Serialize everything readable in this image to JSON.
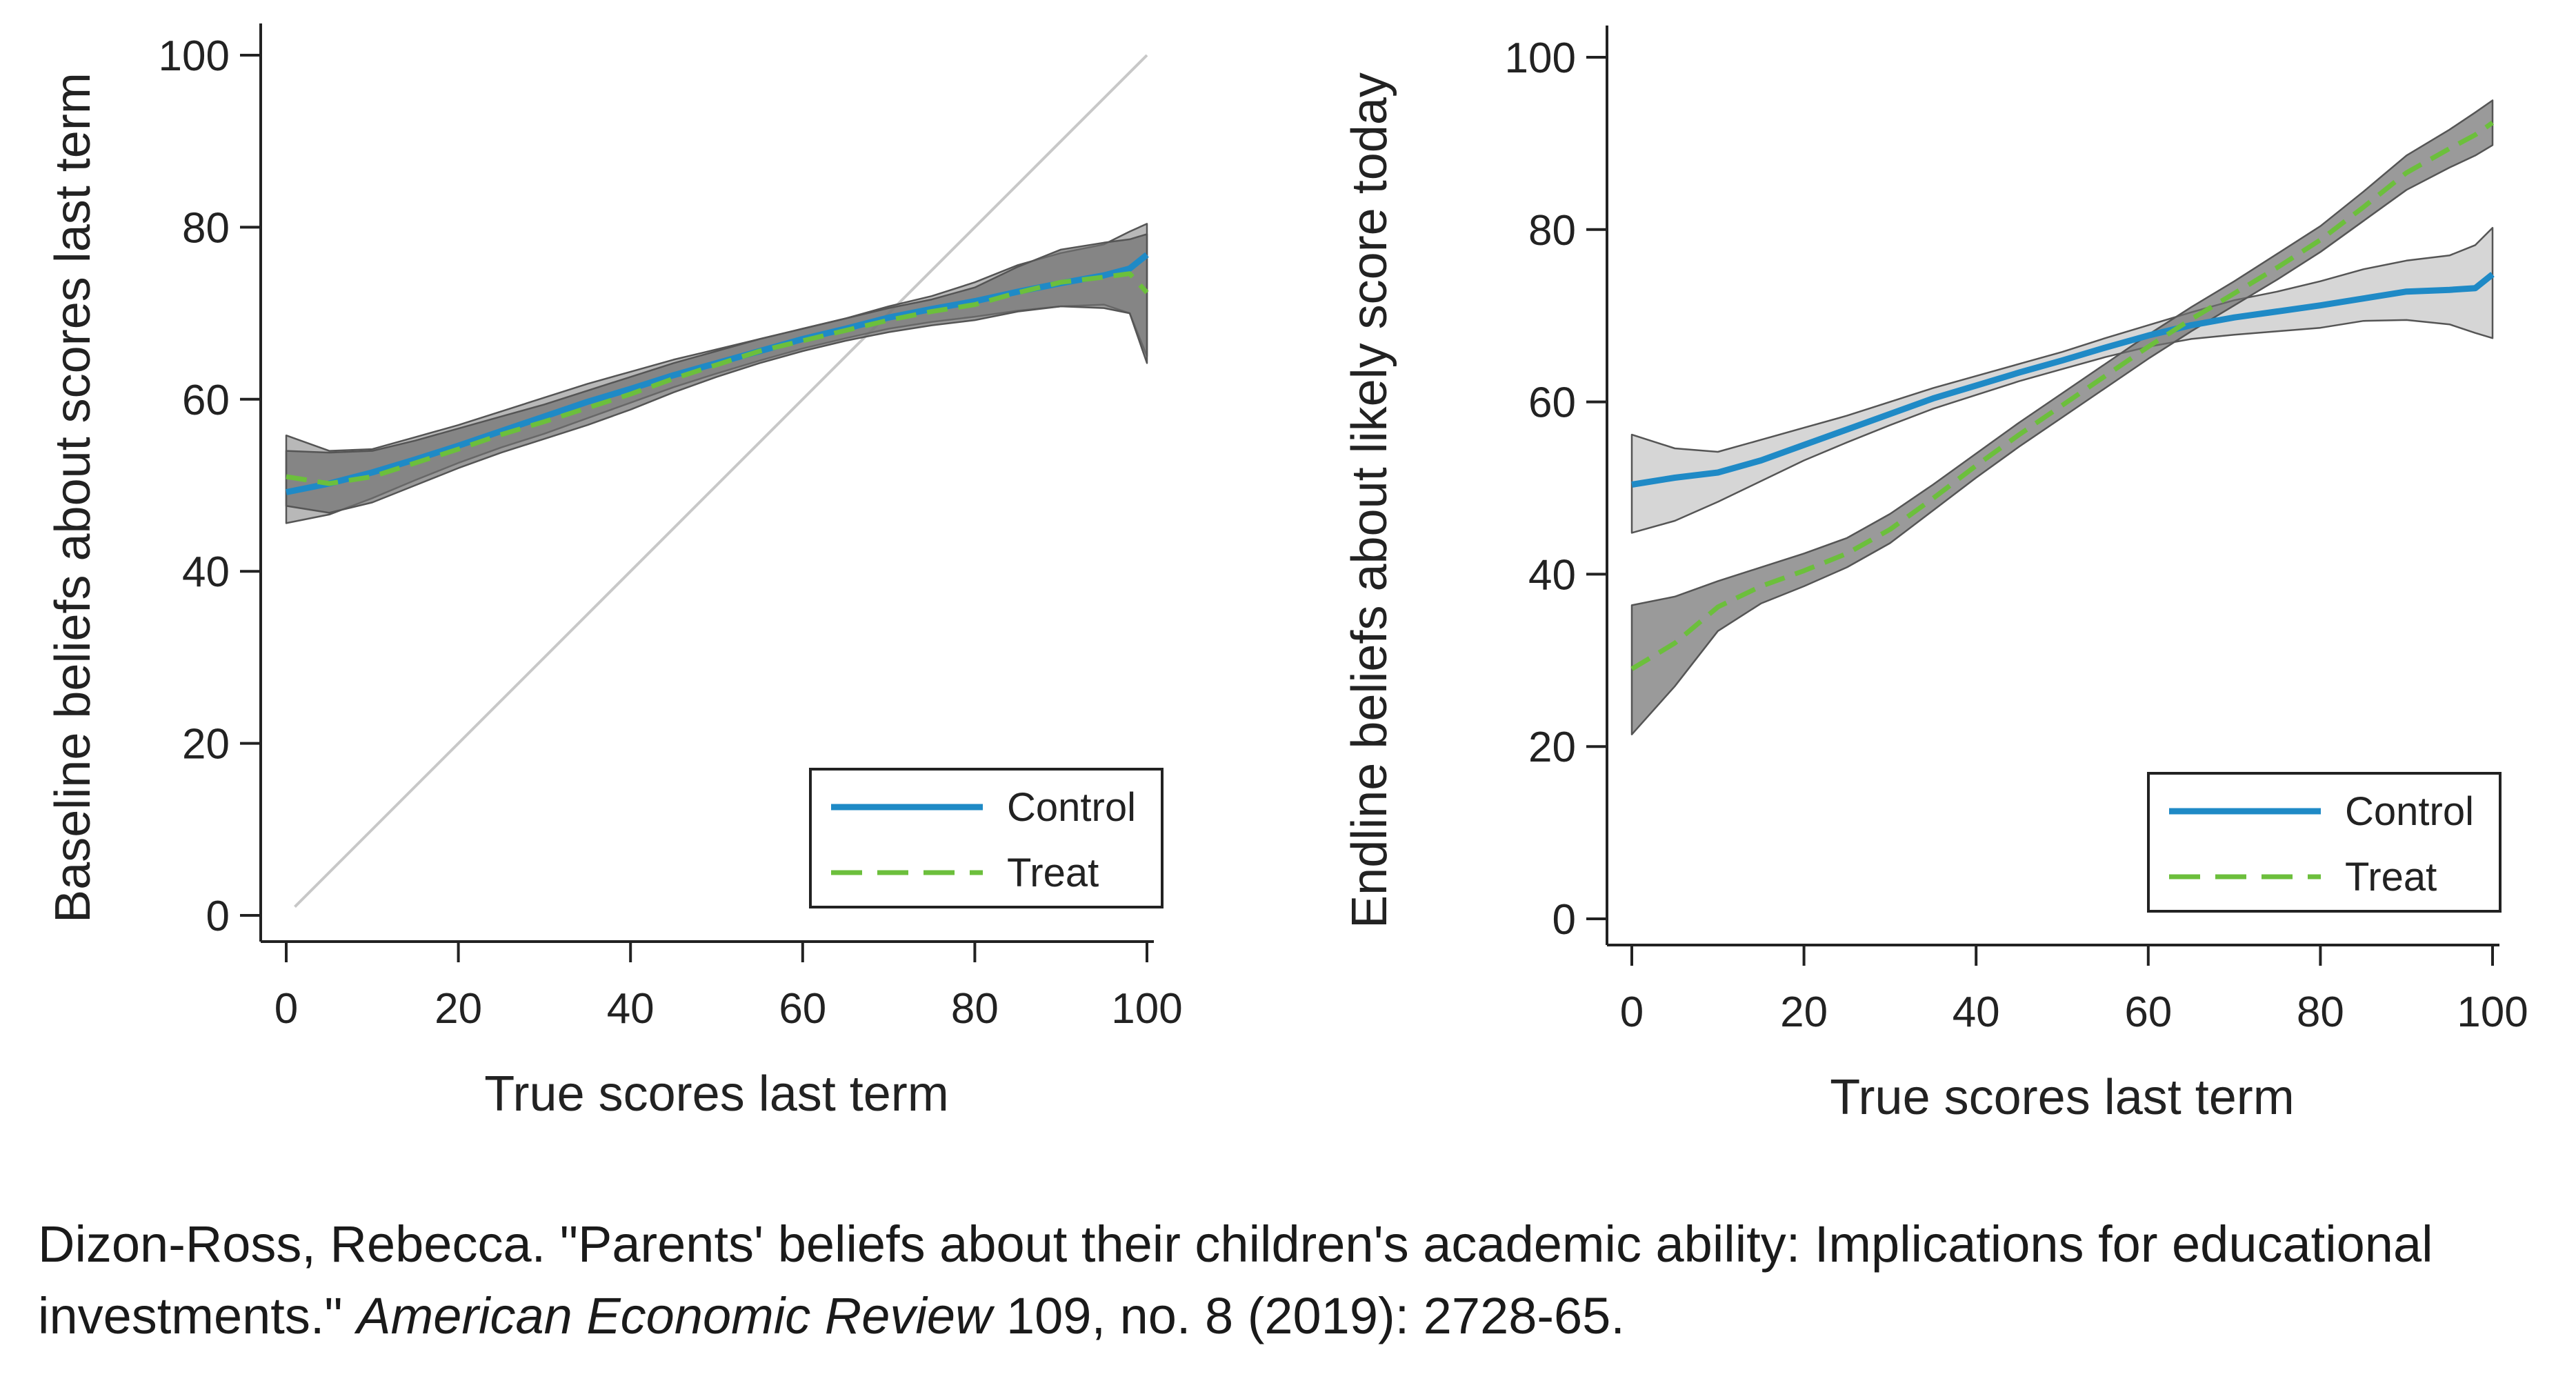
{
  "chart_data": [
    {
      "type": "line",
      "title": "",
      "xlabel": "True scores last term",
      "ylabel": "Baseline beliefs about scores last term",
      "xlim": [
        0,
        100
      ],
      "ylim": [
        0,
        100
      ],
      "xticks": [
        "0",
        "20",
        "40",
        "60",
        "80",
        "100"
      ],
      "yticks": [
        "0",
        "20",
        "40",
        "60",
        "80",
        "100"
      ],
      "grid": false,
      "legend_position": "bottom-right",
      "reference_line": {
        "from": [
          1,
          1
        ],
        "to": [
          100,
          100
        ],
        "label": ""
      },
      "series": [
        {
          "name": "Control",
          "style": "solid",
          "color": "#1f8ac6",
          "x": [
            0,
            5,
            10,
            15,
            20,
            25,
            30,
            35,
            40,
            45,
            50,
            55,
            60,
            65,
            70,
            75,
            80,
            85,
            90,
            95,
            98,
            100
          ],
          "y": [
            49.2,
            50.2,
            51.5,
            53.0,
            54.6,
            56.3,
            58.0,
            59.7,
            61.2,
            62.8,
            64.2,
            65.6,
            67.0,
            68.2,
            69.5,
            70.5,
            71.4,
            72.5,
            73.5,
            74.4,
            75.2,
            76.8
          ],
          "ci_lower": [
            45.6,
            46.6,
            48.5,
            50.6,
            52.6,
            54.4,
            56.0,
            57.8,
            59.6,
            61.4,
            63.0,
            64.5,
            65.9,
            67.1,
            68.2,
            69.0,
            69.6,
            70.3,
            70.8,
            71.0,
            70.0,
            65.0
          ],
          "ci_upper": [
            55.8,
            54.0,
            54.2,
            55.6,
            57.0,
            58.6,
            60.2,
            61.8,
            63.2,
            64.6,
            65.8,
            67.0,
            68.2,
            69.4,
            70.8,
            72.0,
            73.6,
            75.6,
            77.0,
            78.0,
            79.5,
            80.4
          ]
        },
        {
          "name": "Treat",
          "style": "dashed",
          "color": "#6cbf3c",
          "x": [
            0,
            5,
            10,
            15,
            20,
            25,
            30,
            35,
            40,
            45,
            50,
            55,
            60,
            65,
            70,
            75,
            80,
            85,
            90,
            95,
            98,
            100
          ],
          "y": [
            51.0,
            50.2,
            51.0,
            52.6,
            54.2,
            55.9,
            57.4,
            59.0,
            60.6,
            62.4,
            64.0,
            65.6,
            66.8,
            68.0,
            69.2,
            70.2,
            71.0,
            72.4,
            73.6,
            74.2,
            74.6,
            72.4
          ],
          "ci_lower": [
            47.6,
            46.8,
            48.0,
            50.0,
            52.0,
            53.8,
            55.4,
            57.0,
            58.8,
            60.8,
            62.6,
            64.2,
            65.6,
            66.8,
            67.8,
            68.6,
            69.2,
            70.2,
            70.8,
            70.6,
            70.0,
            64.2
          ],
          "ci_upper": [
            54.0,
            53.8,
            54.0,
            55.2,
            56.6,
            58.0,
            59.4,
            61.0,
            62.6,
            64.2,
            65.6,
            67.0,
            68.2,
            69.4,
            70.6,
            71.6,
            73.0,
            75.4,
            77.4,
            78.2,
            78.6,
            79.2
          ]
        }
      ]
    },
    {
      "type": "line",
      "title": "",
      "xlabel": "True scores last term",
      "ylabel": "Endline beliefs about likely score today",
      "xlim": [
        0,
        100
      ],
      "ylim": [
        0,
        100
      ],
      "xticks": [
        "0",
        "20",
        "40",
        "60",
        "80",
        "100"
      ],
      "yticks": [
        "0",
        "20",
        "40",
        "60",
        "80",
        "100"
      ],
      "grid": false,
      "legend_position": "bottom-right",
      "series": [
        {
          "name": "Control",
          "style": "solid",
          "color": "#1f8ac6",
          "x": [
            0,
            5,
            10,
            15,
            20,
            25,
            30,
            35,
            40,
            45,
            50,
            55,
            60,
            65,
            70,
            75,
            80,
            85,
            90,
            95,
            98,
            100
          ],
          "y": [
            50.4,
            51.2,
            51.8,
            53.2,
            55.0,
            56.8,
            58.6,
            60.4,
            61.9,
            63.4,
            64.8,
            66.3,
            67.7,
            68.9,
            69.8,
            70.5,
            71.2,
            72.0,
            72.8,
            73.0,
            73.2,
            74.8
          ],
          "ci_lower": [
            44.8,
            46.2,
            48.4,
            50.8,
            53.2,
            55.3,
            57.3,
            59.2,
            60.8,
            62.4,
            63.8,
            65.2,
            66.4,
            67.3,
            67.8,
            68.2,
            68.6,
            69.4,
            69.5,
            69.0,
            68.0,
            67.4
          ],
          "ci_upper": [
            56.2,
            54.6,
            54.2,
            55.6,
            57.0,
            58.4,
            60.0,
            61.6,
            63.0,
            64.4,
            65.8,
            67.4,
            68.9,
            70.4,
            71.8,
            72.8,
            74.0,
            75.4,
            76.4,
            77.0,
            78.2,
            80.2
          ]
        },
        {
          "name": "Treat",
          "style": "dashed",
          "color": "#6cbf3c",
          "x": [
            0,
            5,
            10,
            15,
            20,
            25,
            30,
            35,
            40,
            45,
            50,
            55,
            60,
            65,
            70,
            75,
            80,
            85,
            90,
            95,
            98,
            100
          ],
          "y": [
            29.0,
            32.0,
            36.2,
            38.6,
            40.4,
            42.4,
            45.2,
            48.8,
            52.6,
            56.2,
            59.6,
            63.0,
            66.4,
            69.6,
            72.6,
            75.6,
            78.8,
            82.6,
            86.6,
            89.4,
            91.0,
            92.4
          ],
          "ci_lower": [
            21.4,
            27.0,
            33.4,
            36.6,
            38.6,
            40.8,
            43.6,
            47.4,
            51.2,
            54.8,
            58.2,
            61.6,
            65.0,
            68.2,
            71.2,
            74.2,
            77.4,
            81.0,
            84.6,
            87.2,
            88.6,
            89.8
          ],
          "ci_upper": [
            36.4,
            37.4,
            39.2,
            40.8,
            42.4,
            44.2,
            47.0,
            50.4,
            54.0,
            57.6,
            61.0,
            64.4,
            67.8,
            71.0,
            74.0,
            77.2,
            80.4,
            84.4,
            88.6,
            91.6,
            93.6,
            95.0
          ]
        }
      ]
    }
  ],
  "caption": {
    "text_pre": "Dizon-Ross, Rebecca. \"Parents' beliefs about their children's academic ability: Implications for educational investments.\" ",
    "journal": "American Economic Review",
    "text_post": " 109, no. 8 (2019): 2728-65."
  }
}
